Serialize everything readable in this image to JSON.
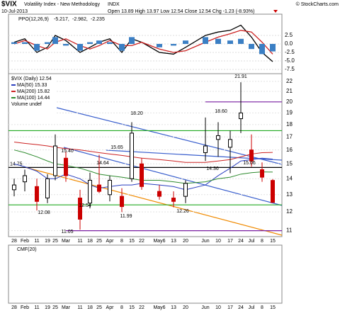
{
  "chart_data": {
    "type": "candlestick",
    "title": "$VIX",
    "subtitle": "Volatility Index - New Methodology",
    "exchange": "INDX",
    "credit": "© StockCharts.com",
    "date": "10-Jul-2013",
    "quote": "Open 13.89 High 13.97 Low 12.54 Close 12.54 Chg -1.23 (-8.93%)",
    "categories": [
      "28",
      "Feb",
      "11",
      "19",
      "25",
      "Mar",
      "11",
      "18",
      "25",
      "Apr",
      "8",
      "15",
      "22",
      "May6",
      "13",
      "20",
      "Jun",
      "10",
      "17",
      "24",
      "Jul",
      "8",
      "15"
    ],
    "log_y": true,
    "grid": true,
    "ylim": [
      10.7,
      22.8
    ],
    "yticks": [
      11,
      12,
      13,
      14,
      15,
      16,
      17,
      18,
      19,
      20,
      21,
      22
    ],
    "price_legend": "$VIX (Daily) 12.54",
    "up_color": "#000000",
    "down_color": "#cc0000",
    "ohlc": {
      "open": [
        13.3,
        13.8,
        13.5,
        12.8,
        14.2,
        15.4,
        12.8,
        12.5,
        13.6,
        13.0,
        12.9,
        14.0,
        15.0,
        13.2,
        12.8,
        12.9,
        15.8,
        16.8,
        16.2,
        18.5,
        16.0,
        14.6,
        13.89
      ],
      "high": [
        14.0,
        14.6,
        14.0,
        14.3,
        17.2,
        15.9,
        13.3,
        14.4,
        15.65,
        14.2,
        13.4,
        18.2,
        15.4,
        13.6,
        13.2,
        13.9,
        18.6,
        18.2,
        17.5,
        21.91,
        17.2,
        15.1,
        13.97
      ],
      "low": [
        12.9,
        13.2,
        12.08,
        12.5,
        13.9,
        13.8,
        11.05,
        12.2,
        13.1,
        12.6,
        11.99,
        13.8,
        13.3,
        12.7,
        12.26,
        12.5,
        15.2,
        15.5,
        14.36,
        17.3,
        14.8,
        13.8,
        12.54
      ],
      "close": [
        13.6,
        14.2,
        12.6,
        14.0,
        16.3,
        14.2,
        11.6,
        13.9,
        13.2,
        13.9,
        12.3,
        17.3,
        13.5,
        12.9,
        12.6,
        13.7,
        16.3,
        17.1,
        16.8,
        19.0,
        15.2,
        14.1,
        12.54
      ]
    },
    "series": [
      {
        "name": "MA(50) 15.33",
        "color": "#2a3fbf",
        "values": [
          15.0,
          14.8,
          14.5,
          14.0,
          14.0,
          14.3,
          14.0,
          13.6,
          13.4,
          13.5,
          13.6,
          13.6,
          13.7,
          13.6,
          13.5,
          13.3,
          13.6,
          14.2,
          14.7,
          15.2,
          15.3,
          15.4,
          15.33
        ]
      },
      {
        "name": "MA(200) 15.82",
        "color": "#cc2222",
        "values": [
          16.6,
          16.5,
          16.4,
          16.3,
          16.2,
          16.1,
          16.0,
          15.9,
          15.8,
          15.7,
          15.6,
          15.5,
          15.4,
          15.3,
          15.2,
          15.1,
          15.1,
          15.2,
          15.3,
          15.5,
          15.7,
          15.8,
          15.82
        ]
      },
      {
        "name": "MA(100) 14.44",
        "color": "#2e8b2e",
        "values": [
          16.0,
          15.8,
          15.5,
          15.2,
          15.0,
          14.9,
          14.7,
          14.5,
          14.3,
          14.2,
          14.1,
          14.0,
          13.9,
          13.9,
          13.8,
          13.7,
          13.8,
          14.0,
          14.1,
          14.3,
          14.4,
          14.45,
          14.44
        ]
      }
    ],
    "volume_legend": "Volume undef",
    "hlines": [
      {
        "value": 14.75,
        "color": "#000000"
      },
      {
        "value": 17.5,
        "color": "#22aa22"
      },
      {
        "value": 12.4,
        "color": "#22aa22"
      },
      {
        "value": 20,
        "color": "#7a1fa2"
      },
      {
        "value": 11,
        "color": "#7a1fa2"
      }
    ],
    "annotations": [
      "12.08",
      "15.40",
      "15.65",
      "18.20",
      "14.64",
      "12.54",
      "11.99",
      "11.05",
      "12.26",
      "18.60",
      "21.91",
      "14.36",
      "15.06"
    ],
    "ppo": {
      "legend": "PPO(12,26,9)",
      "legend_values": [
        "-5.217,",
        "-2.982,",
        "-2.235"
      ],
      "ylim": [
        -8.75,
        8.75
      ],
      "yticks": [
        2.5,
        {
          "value": 0,
          "label": "0.0"
        },
        {
          "value": -2.5,
          "label": "-2.5"
        },
        {
          "value": -5,
          "label": "-5.0"
        },
        -7.5
      ],
      "series": [
        {
          "color": "#000000",
          "values": [
            0.5,
            1.5,
            -2.5,
            -1,
            2.5,
            1,
            -2.5,
            -1,
            0.5,
            1.5,
            -2.5,
            1.5,
            0.5,
            -2.5,
            -3,
            -1,
            2.5,
            3.5,
            4,
            5.5,
            2,
            -2.5,
            -5.2
          ]
        },
        {
          "color": "#cc2222",
          "values": [
            0,
            1,
            -0.5,
            -1.5,
            0.5,
            1.5,
            -0.5,
            -1.5,
            -0.5,
            1,
            -0.5,
            -0.5,
            0.5,
            -1.5,
            -2.5,
            -2,
            0.5,
            2,
            3,
            4,
            3.5,
            0.5,
            -3
          ]
        },
        {
          "color": "#3b7fc4",
          "style": "bar",
          "values": [
            0.5,
            0.5,
            -2,
            0.5,
            2,
            -0.5,
            -2,
            0.5,
            1,
            0.5,
            -2,
            2,
            0,
            -1,
            -0.5,
            1,
            2,
            1.5,
            1,
            1.5,
            -1.5,
            -3,
            -2.2
          ]
        }
      ]
    },
    "cmf": {
      "legend": "CMF(20)"
    }
  }
}
